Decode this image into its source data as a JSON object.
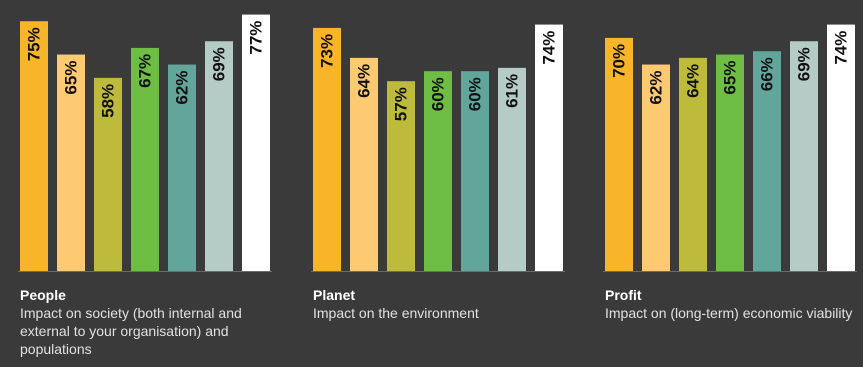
{
  "chart_data": [
    {
      "type": "bar",
      "title": "People",
      "subtitle": "Impact on society (both internal and external to your organisation) and populations",
      "values": [
        75,
        65,
        58,
        67,
        62,
        69,
        77
      ],
      "labels": [
        "75%",
        "65%",
        "58%",
        "67%",
        "62%",
        "69%",
        "77%"
      ],
      "ylim": [
        0,
        80
      ]
    },
    {
      "type": "bar",
      "title": "Planet",
      "subtitle": "Impact on the environment",
      "values": [
        73,
        64,
        57,
        60,
        60,
        61,
        74
      ],
      "labels": [
        "73%",
        "64%",
        "57%",
        "60%",
        "60%",
        "61%",
        "74%"
      ],
      "ylim": [
        0,
        80
      ]
    },
    {
      "type": "bar",
      "title": "Profit",
      "subtitle": "Impact on (long-term) economic viability",
      "values": [
        70,
        62,
        64,
        65,
        66,
        69,
        74
      ],
      "labels": [
        "70%",
        "62%",
        "64%",
        "65%",
        "66%",
        "69%",
        "74%"
      ],
      "ylim": [
        0,
        80
      ]
    }
  ],
  "colors": [
    "#f9b52a",
    "#fdca72",
    "#bdba3c",
    "#6fbe44",
    "#62a59b",
    "#b4cbc6",
    "#ffffff"
  ]
}
